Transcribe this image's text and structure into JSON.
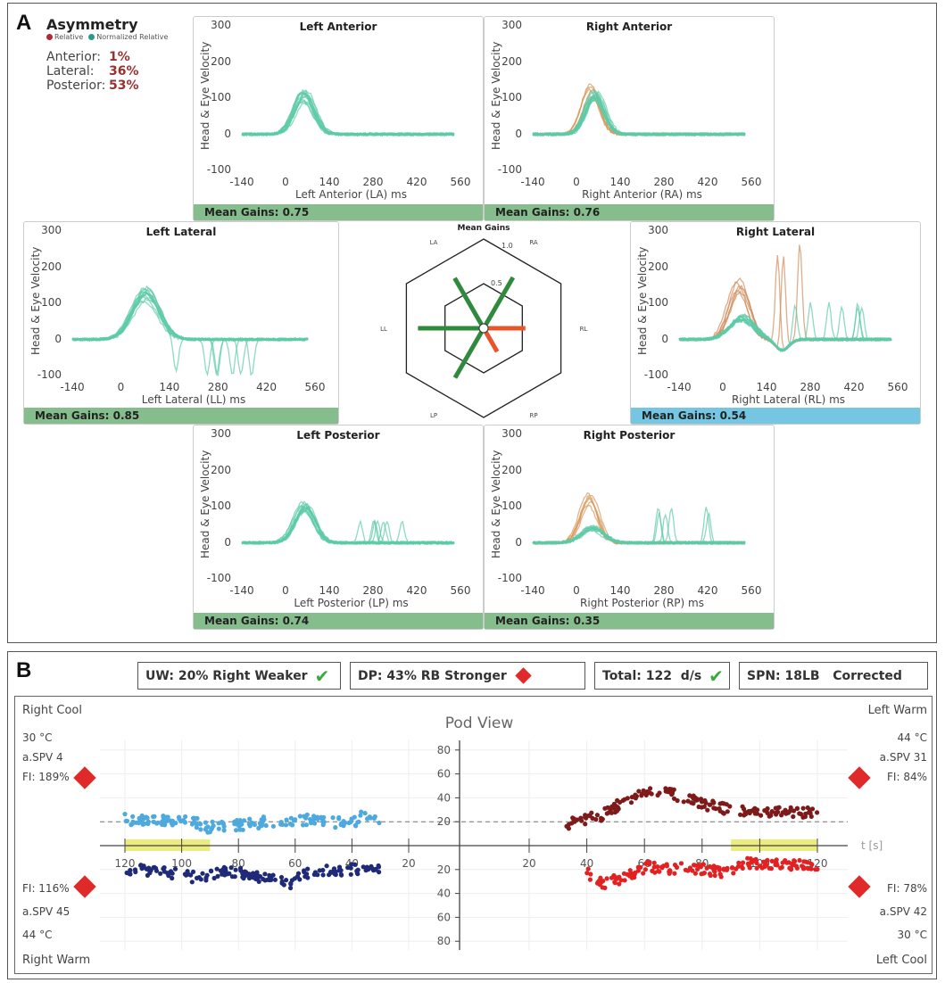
{
  "panelA": {
    "label": "A",
    "asymmetry": {
      "title": "Asymmetry",
      "legend": [
        {
          "label": "Relative",
          "color": "#b0283a"
        },
        {
          "label": "Normalized Relative",
          "color": "#2a9a8a"
        }
      ],
      "rows": [
        {
          "label": "Anterior:",
          "value": "1%"
        },
        {
          "label": "Lateral:",
          "value": "36%"
        },
        {
          "label": "Posterior:",
          "value": "53%"
        }
      ]
    },
    "radar_title": "Mean Gains"
  },
  "chart_data": [
    {
      "type": "line",
      "id": "la",
      "title": "Left Anterior",
      "xlabel": "Left Anterior (LA) ms",
      "ylabel": "Head & Eye Velocity",
      "xticks": [
        "-140",
        "0",
        "140",
        "280",
        "420",
        "560"
      ],
      "yticks": [
        "300",
        "200",
        "100",
        "0",
        "-100"
      ],
      "xlim": [
        -140,
        560
      ],
      "ylim": [
        -100,
        300
      ],
      "mean_gain_label": "Mean Gains: 0.75",
      "gain_color": "#86bd8c",
      "traces": [
        {
          "color": "#5ccaa6",
          "count": 14,
          "peak": 105,
          "peak_ms": 60,
          "width": 45,
          "spikes": []
        }
      ]
    },
    {
      "type": "line",
      "id": "ra",
      "title": "Right Anterior",
      "xlabel": "Right Anterior (RA) ms",
      "ylabel": "Head & Eye Velocity",
      "xticks": [
        "-140",
        "0",
        "140",
        "280",
        "420",
        "560"
      ],
      "yticks": [
        "300",
        "200",
        "100",
        "0",
        "-100"
      ],
      "xlim": [
        -140,
        560
      ],
      "ylim": [
        -100,
        300
      ],
      "mean_gain_label": "Mean Gains: 0.76",
      "gain_color": "#86bd8c",
      "traces": [
        {
          "color": "#d9955a",
          "count": 6,
          "peak": 120,
          "peak_ms": 45,
          "width": 40,
          "spikes": []
        },
        {
          "color": "#5ccaa6",
          "count": 14,
          "peak": 105,
          "peak_ms": 60,
          "width": 42,
          "spikes": []
        }
      ]
    },
    {
      "type": "line",
      "id": "ll",
      "title": "Left Lateral",
      "xlabel": "Left Lateral (LL) ms",
      "ylabel": "Head & Eye Velocity",
      "xticks": [
        "-140",
        "0",
        "140",
        "280",
        "420",
        "560"
      ],
      "yticks": [
        "300",
        "200",
        "100",
        "0",
        "-100"
      ],
      "xlim": [
        -140,
        560
      ],
      "ylim": [
        -100,
        300
      ],
      "mean_gain_label": "Mean Gains: 0.85",
      "gain_color": "#86bd8c",
      "traces": [
        {
          "color": "#5ccaa6",
          "count": 14,
          "peak": 125,
          "peak_ms": 70,
          "width": 55,
          "spikes": [
            -100,
            -90,
            -100,
            -80
          ]
        }
      ]
    },
    {
      "type": "line",
      "id": "rl",
      "title": "Right Lateral",
      "xlabel": "Right Lateral (RL) ms",
      "ylabel": "Head & Eye Velocity",
      "xticks": [
        "-140",
        "0",
        "140",
        "280",
        "420",
        "560"
      ],
      "yticks": [
        "300",
        "200",
        "100",
        "0",
        "-100"
      ],
      "xlim": [
        -140,
        560
      ],
      "ylim": [
        -100,
        300
      ],
      "mean_gain_label": "Mean Gains: 0.54",
      "gain_color": "#74c6e2",
      "traces": [
        {
          "color": "#d08a5a",
          "count": 6,
          "peak": 150,
          "peak_ms": 50,
          "width": 45,
          "spikes": [
            260,
            240,
            270,
            230
          ]
        },
        {
          "color": "#5ccaa6",
          "count": 14,
          "peak": 60,
          "peak_ms": 60,
          "width": 55,
          "spikes": [
            100,
            110,
            90,
            100
          ]
        }
      ]
    },
    {
      "type": "line",
      "id": "lp",
      "title": "Left Posterior",
      "xlabel": "Left Posterior (LP) ms",
      "ylabel": "Head & Eye Velocity",
      "xticks": [
        "-140",
        "0",
        "140",
        "280",
        "420",
        "560"
      ],
      "yticks": [
        "300",
        "200",
        "100",
        "0",
        "-100"
      ],
      "xlim": [
        -140,
        560
      ],
      "ylim": [
        -100,
        300
      ],
      "mean_gain_label": "Mean Gains: 0.74",
      "gain_color": "#86bd8c",
      "traces": [
        {
          "color": "#5ccaa6",
          "count": 14,
          "peak": 100,
          "peak_ms": 60,
          "width": 45,
          "spikes": [
            60,
            50
          ]
        }
      ]
    },
    {
      "type": "line",
      "id": "rp",
      "title": "Right Posterior",
      "xlabel": "Right Posterior (RP) ms",
      "ylabel": "Head & Eye Velocity",
      "xticks": [
        "-140",
        "0",
        "140",
        "280",
        "420",
        "560"
      ],
      "yticks": [
        "300",
        "200",
        "100",
        "0",
        "-100"
      ],
      "xlim": [
        -140,
        560
      ],
      "ylim": [
        -100,
        300
      ],
      "mean_gain_label": "Mean Gains: 0.35",
      "gain_color": "#86bd8c",
      "traces": [
        {
          "color": "#d9955a",
          "count": 6,
          "peak": 120,
          "peak_ms": 40,
          "width": 40,
          "spikes": []
        },
        {
          "color": "#5ccaa6",
          "count": 12,
          "peak": 40,
          "peak_ms": 50,
          "width": 50,
          "spikes": [
            100,
            90,
            80,
            100
          ]
        }
      ]
    },
    {
      "type": "radar",
      "id": "mean_gains",
      "title": "Mean Gains",
      "axes": [
        "LA",
        "RA",
        "RL",
        "RP",
        "LP",
        "LL"
      ],
      "values": [
        0.75,
        0.76,
        0.54,
        0.35,
        0.74,
        0.85
      ],
      "colors": [
        "#2e8b3e",
        "#2e8b3e",
        "#e8552a",
        "#e8552a",
        "#2e8b3e",
        "#2e8b3e"
      ],
      "rings": [
        "1.0",
        "0.5"
      ]
    },
    {
      "type": "scatter",
      "id": "pod_view",
      "title": "Pod View",
      "xlabel": "t [s]",
      "left_xticks": [
        "120",
        "100",
        "80",
        "60",
        "40",
        "20"
      ],
      "right_xticks": [
        "20",
        "40",
        "60",
        "80",
        "100",
        "120"
      ],
      "upper_yticks": [
        "80",
        "60",
        "40",
        "20"
      ],
      "lower_yticks": [
        "20",
        "40",
        "60",
        "80"
      ],
      "threshold": 20,
      "highlight_ranges": {
        "left": [
          90,
          120
        ],
        "right": [
          90,
          120
        ]
      },
      "series": [
        {
          "name": "Right Cool",
          "side": "left",
          "direction": "up",
          "color": "#4ea9df",
          "points": [
            [
              120,
              22
            ],
            [
              110,
              20
            ],
            [
              97,
              22
            ],
            [
              92,
              15
            ],
            [
              80,
              17
            ],
            [
              70,
              20
            ],
            [
              55,
              22
            ],
            [
              40,
              18
            ],
            [
              36,
              26
            ],
            [
              30,
              22
            ]
          ]
        },
        {
          "name": "Right Warm",
          "side": "left",
          "direction": "down",
          "color": "#1f2a78",
          "points": [
            [
              120,
              19
            ],
            [
              105,
              22
            ],
            [
              92,
              28
            ],
            [
              85,
              20
            ],
            [
              75,
              25
            ],
            [
              62,
              32
            ],
            [
              55,
              22
            ],
            [
              40,
              20
            ],
            [
              30,
              19
            ]
          ]
        },
        {
          "name": "Left Warm",
          "side": "right",
          "direction": "up",
          "color": "#7e1a1a",
          "points": [
            [
              33,
              18
            ],
            [
              45,
              25
            ],
            [
              55,
              40
            ],
            [
              62,
              45
            ],
            [
              68,
              45
            ],
            [
              80,
              35
            ],
            [
              90,
              30
            ],
            [
              100,
              28
            ],
            [
              120,
              28
            ]
          ]
        },
        {
          "name": "Left Cool",
          "side": "right",
          "direction": "down",
          "color": "#e22222",
          "points": [
            [
              40,
              22
            ],
            [
              45,
              32
            ],
            [
              55,
              25
            ],
            [
              60,
              18
            ],
            [
              80,
              20
            ],
            [
              90,
              23
            ],
            [
              95,
              15
            ],
            [
              120,
              16
            ]
          ]
        }
      ]
    }
  ],
  "panelB": {
    "label": "B",
    "boxes": [
      {
        "text": "UW: 20% Right Weaker",
        "icon": "check"
      },
      {
        "text": "DP: 43% RB Stronger",
        "icon": "diamond"
      },
      {
        "text": "Total: 122  d/s",
        "icon": "check"
      },
      {
        "text": "SPN: 18LB   Corrected",
        "icon": ""
      }
    ],
    "title": "Pod View",
    "axis_unit": "t [s]",
    "left_top": [
      "Right Cool",
      "30 °C",
      "a.SPV 4",
      "FI: 189%"
    ],
    "left_bottom": [
      "FI: 116%",
      "a.SPV 45",
      "44 °C",
      "Right Warm"
    ],
    "right_top": [
      "Left Warm",
      "44 °C",
      "a.SPV 31",
      "FI: 84%"
    ],
    "right_bottom": [
      "FI: 78%",
      "a.SPV 42",
      "30 °C",
      "Left Cool"
    ]
  }
}
